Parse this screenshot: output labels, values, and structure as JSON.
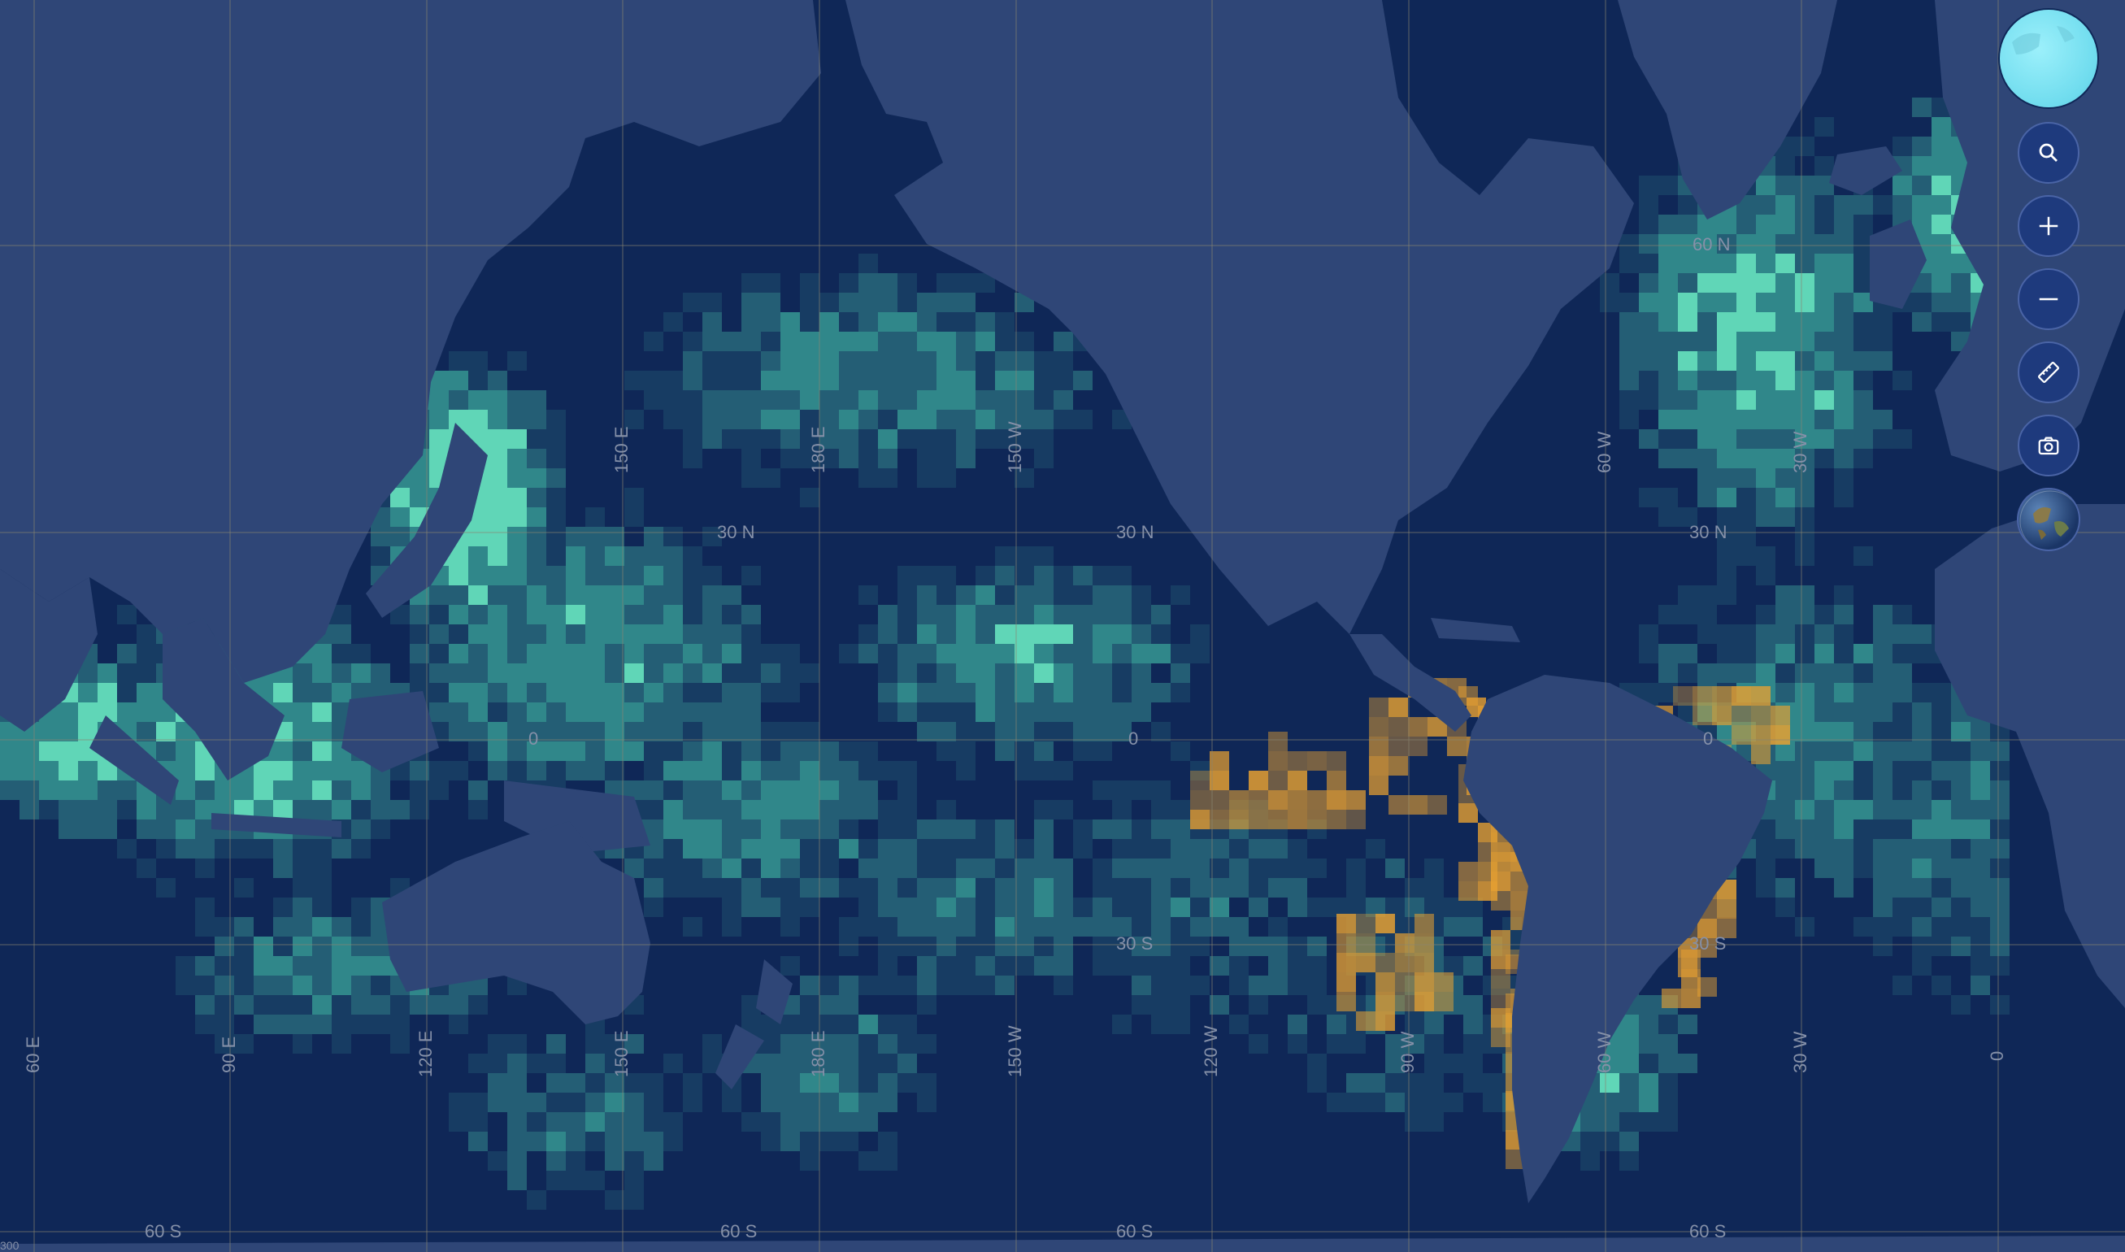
{
  "map": {
    "colors": {
      "ocean": "#0f2757",
      "land": "#2f4677",
      "grid": "#7a7a6a",
      "density_low": "#1f4f6e",
      "density_mid": "#2f7d86",
      "density_high": "#3fb0a0",
      "density_peak": "#6ef6c8",
      "highlight": "#e8a131"
    },
    "graticule_labels": {
      "lat": [
        {
          "text": "60 N",
          "id": "lat-60n"
        },
        {
          "text": "30 N",
          "id": "lat-30n-a"
        },
        {
          "text": "30 N",
          "id": "lat-30n-b"
        },
        {
          "text": "30 N",
          "id": "lat-30n-c"
        },
        {
          "text": "0",
          "id": "lat-0-a"
        },
        {
          "text": "0",
          "id": "lat-0-b"
        },
        {
          "text": "0",
          "id": "lat-0-c"
        },
        {
          "text": "30 S",
          "id": "lat-30s-a"
        },
        {
          "text": "30 S",
          "id": "lat-30s-b"
        },
        {
          "text": "60 S",
          "id": "lat-60s-a"
        },
        {
          "text": "60 S",
          "id": "lat-60s-b"
        },
        {
          "text": "60 S",
          "id": "lat-60s-c"
        },
        {
          "text": "60 S",
          "id": "lat-60s-d"
        }
      ],
      "lon": [
        {
          "text": "60 E"
        },
        {
          "text": "90 E"
        },
        {
          "text": "120 E"
        },
        {
          "text": "150 E"
        },
        {
          "text": "180 E"
        },
        {
          "text": "150 W"
        },
        {
          "text": "120 W"
        },
        {
          "text": "90 W"
        },
        {
          "text": "60 W"
        },
        {
          "text": "30 W"
        },
        {
          "text": "0"
        },
        {
          "text": "150 E"
        },
        {
          "text": "180 E"
        },
        {
          "text": "150 W"
        },
        {
          "text": "60 W"
        },
        {
          "text": "30 W"
        }
      ]
    },
    "scale_hint": "300"
  },
  "controls": {
    "minimap_icon": "globe-minimap-icon",
    "search_icon": "search-icon",
    "zoom_in_icon": "plus-icon",
    "zoom_out_icon": "minus-icon",
    "measure_icon": "ruler-icon",
    "screenshot_icon": "camera-icon",
    "basemap_icon": "earth-icon"
  }
}
